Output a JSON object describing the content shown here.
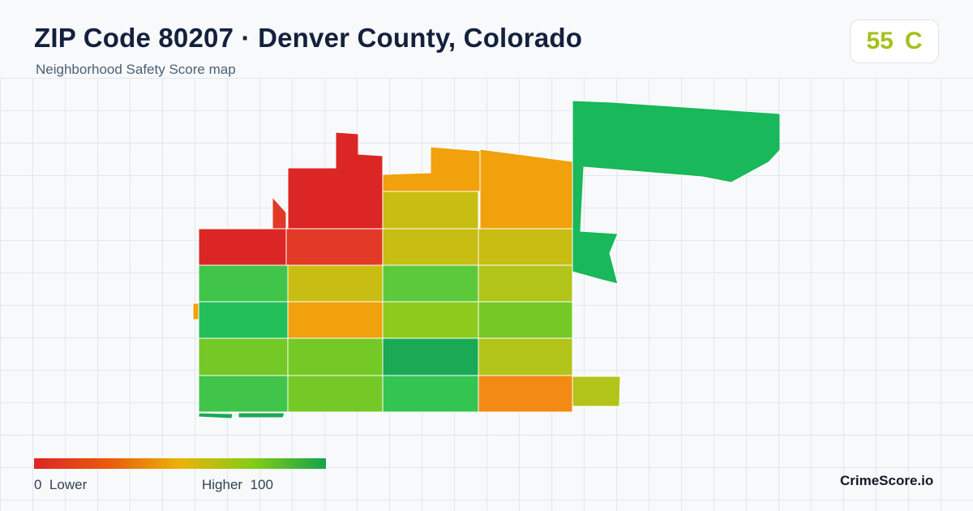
{
  "header": {
    "title": "ZIP Code 80207 · Denver County, Colorado",
    "subtitle": "Neighborhood Safety Score map"
  },
  "score": {
    "value": "55",
    "grade": "C",
    "color": "#a3c21a"
  },
  "legend": {
    "min_value": "0",
    "min_label": "Lower",
    "max_label": "Higher",
    "max_value": "100",
    "colors": [
      "#dc2626",
      "#ea580c",
      "#eab308",
      "#84cc16",
      "#16a34a"
    ]
  },
  "brand": "CrimeScore.io",
  "map": {
    "cell_colors": {
      "red": "#dc2626",
      "red_orange": "#e23a26",
      "orange": "#f0a10c",
      "dark_orange": "#f28a14",
      "mustard": "#c8bd12",
      "olive": "#b2c419",
      "yellow_green": "#8ccb1c",
      "lime": "#74c926",
      "green_lime": "#5cc93a",
      "green": "#40c44a",
      "mid_green": "#34c452",
      "bright_green": "#22bf5a",
      "deep_green": "#1aaa55",
      "forest": "#19b85a"
    }
  }
}
